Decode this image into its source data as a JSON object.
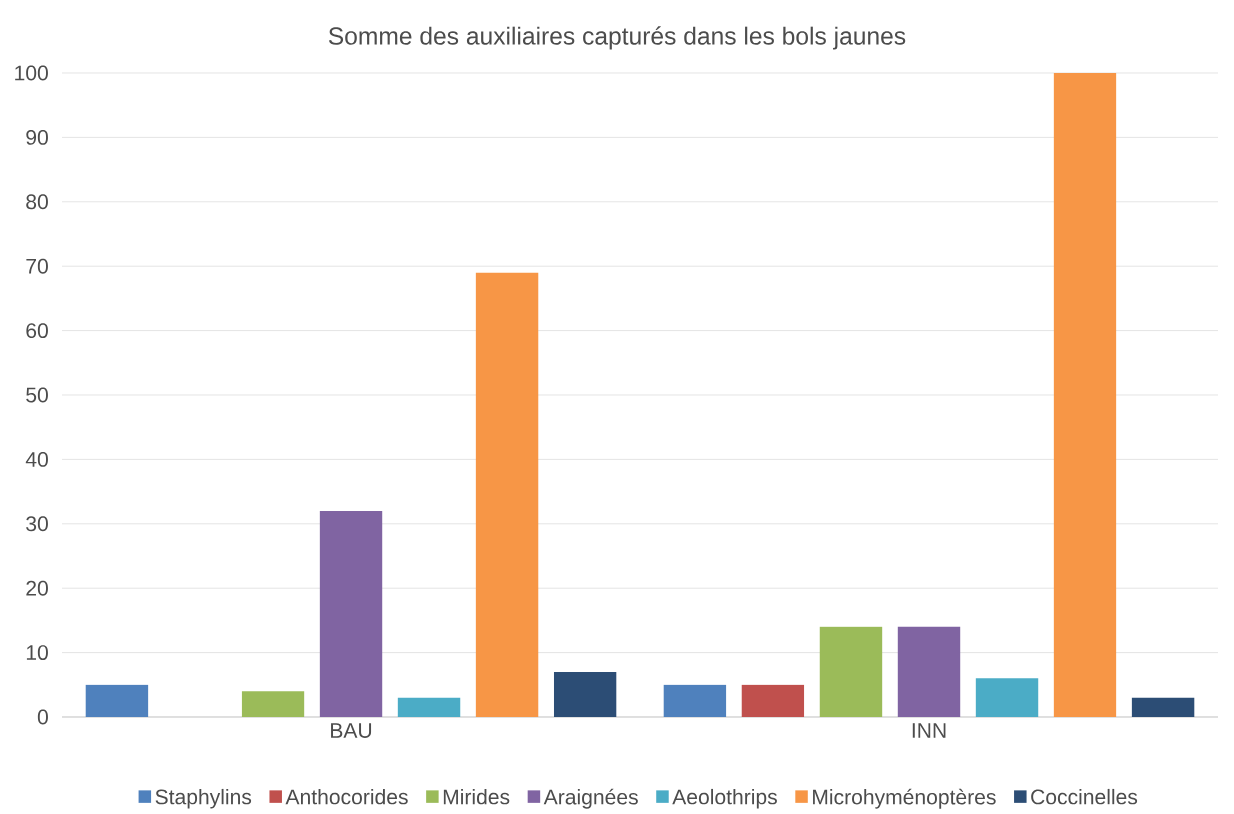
{
  "chart_data": {
    "type": "bar",
    "title": "Somme des auxiliaires capturés dans les bols jaunes",
    "categories": [
      "BAU",
      "INN"
    ],
    "series": [
      {
        "name": "Staphylins",
        "color": "#4f81bd",
        "values": [
          5,
          5
        ]
      },
      {
        "name": "Anthocorides",
        "color": "#c0504d",
        "values": [
          0,
          5
        ]
      },
      {
        "name": "Mirides",
        "color": "#9bbb59",
        "values": [
          4,
          14
        ]
      },
      {
        "name": "Araignées",
        "color": "#8064a2",
        "values": [
          32,
          14
        ]
      },
      {
        "name": "Aeolothrips",
        "color": "#4bacc6",
        "values": [
          3,
          6
        ]
      },
      {
        "name": "Microhyménoptères",
        "color": "#f79646",
        "values": [
          69,
          100
        ]
      },
      {
        "name": "Coccinelles",
        "color": "#2c4d75",
        "values": [
          7,
          3
        ]
      }
    ],
    "ylim": [
      0,
      100
    ],
    "yticks": [
      0,
      10,
      20,
      30,
      40,
      50,
      60,
      70,
      80,
      90,
      100
    ],
    "grid": "y",
    "legend": "bottom"
  }
}
